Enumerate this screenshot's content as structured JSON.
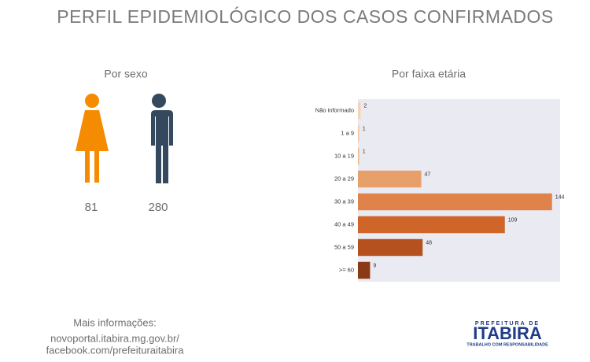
{
  "title": "PERFIL EPIDEMIOLÓGICO DOS CASOS CONFIRMADOS",
  "sex": {
    "title": "Por sexo",
    "female": 81,
    "male": 280
  },
  "chart_data": {
    "type": "bar",
    "orientation": "horizontal",
    "title": "Por faixa etária",
    "categories": [
      "Não informado",
      "1 a 9",
      "10 a 19",
      "20 a 29",
      "30 a 39",
      "40 a 49",
      "50 a 59",
      ">= 60"
    ],
    "values": [
      2,
      1,
      1,
      47,
      144,
      109,
      48,
      9
    ],
    "colors": [
      "#f7d2b4",
      "#f5c8a4",
      "#f2bd93",
      "#e8a06a",
      "#e0834a",
      "#d0652a",
      "#b5501f",
      "#8b3a17"
    ],
    "xlim": [
      0,
      150
    ]
  },
  "footer": {
    "lines": [
      "Mais informações:",
      "novoportal.itabira.mg.gov.br/",
      "facebook.com/prefeituraitabira"
    ]
  },
  "logo": {
    "top": "PREFEITURA DE",
    "name": "ITABIRA",
    "tagline": "TRABALHO COM RESPONSABILIDADE"
  }
}
